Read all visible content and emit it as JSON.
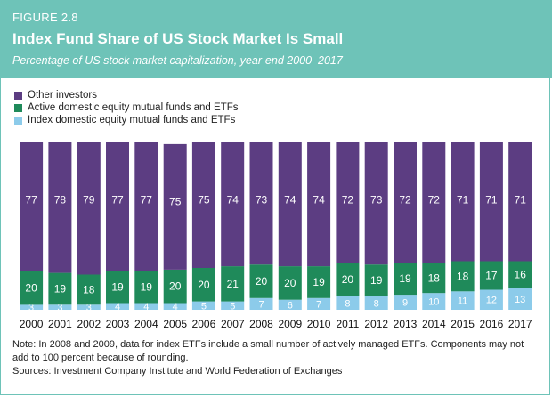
{
  "figure_label": "FIGURE 2.8",
  "title": "Index Fund Share of US Stock Market Is Small",
  "subtitle": "Percentage of US stock market capitalization, year-end 2000–2017",
  "legend": [
    {
      "label": "Other investors",
      "color": "#5c3d82"
    },
    {
      "label": "Active domestic equity mutual funds and ETFs",
      "color": "#1f8a5a"
    },
    {
      "label": "Index domestic equity mutual funds and ETFs",
      "color": "#8ccbea"
    }
  ],
  "note": "Note: In 2008 and 2009, data for index ETFs include a small number of actively managed ETFs. Components may not add to 100 percent because of rounding.",
  "sources": "Sources: Investment Company Institute and World Federation of Exchanges",
  "chart_data": {
    "type": "bar",
    "stacked": true,
    "categories": [
      "2000",
      "2001",
      "2002",
      "2003",
      "2004",
      "2005",
      "2006",
      "2007",
      "2008",
      "2009",
      "2010",
      "2011",
      "2012",
      "2013",
      "2014",
      "2015",
      "2016",
      "2017"
    ],
    "series": [
      {
        "name": "Index domestic equity mutual funds and ETFs",
        "color": "#8ccbea",
        "values": [
          3,
          3,
          3,
          4,
          4,
          4,
          5,
          5,
          7,
          6,
          7,
          8,
          8,
          9,
          10,
          11,
          12,
          13
        ]
      },
      {
        "name": "Active domestic equity mutual funds and ETFs",
        "color": "#1f8a5a",
        "values": [
          20,
          19,
          18,
          19,
          19,
          20,
          20,
          21,
          20,
          20,
          19,
          20,
          19,
          19,
          18,
          18,
          17,
          16
        ]
      },
      {
        "name": "Other investors",
        "color": "#5c3d82",
        "values": [
          77,
          78,
          79,
          77,
          77,
          75,
          75,
          74,
          73,
          74,
          74,
          72,
          73,
          72,
          72,
          71,
          71,
          71
        ]
      }
    ],
    "ylim": [
      0,
      100
    ]
  }
}
